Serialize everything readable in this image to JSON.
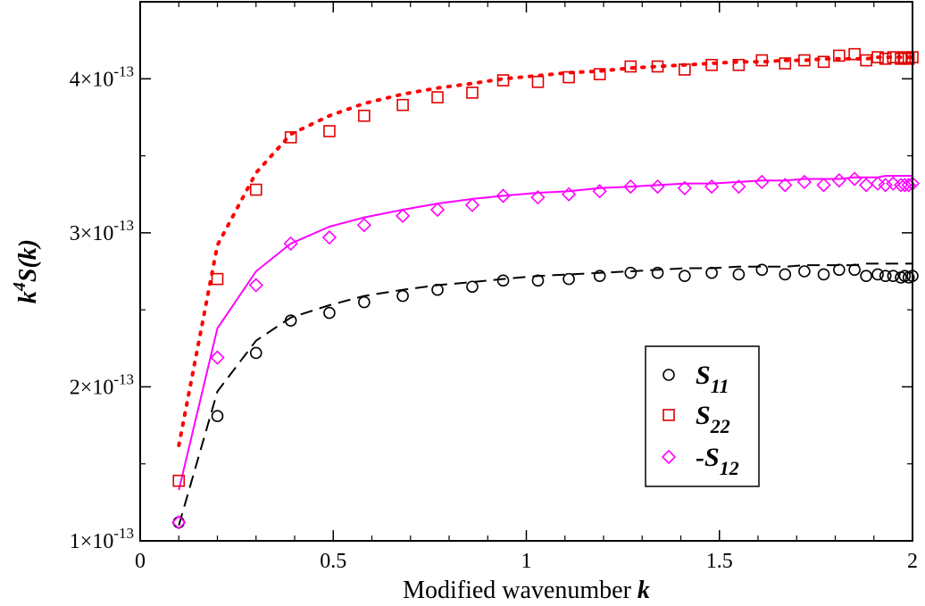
{
  "chart_data": {
    "type": "scatter",
    "title": "",
    "xlabel_text": "Modified wavenumber ",
    "xlabel_var": "k",
    "ylabel_base": "k",
    "ylabel_exp": "4",
    "ylabel_rest": "S(k)",
    "xlim": [
      0,
      2
    ],
    "ylim": [
      1e-13,
      4.5e-13
    ],
    "x_ticks": [
      {
        "value": 0,
        "label": "0"
      },
      {
        "value": 0.5,
        "label": "0.5"
      },
      {
        "value": 1,
        "label": "1"
      },
      {
        "value": 1.5,
        "label": "1.5"
      },
      {
        "value": 2,
        "label": "2"
      }
    ],
    "y_ticks": [
      {
        "value": 1e-13,
        "mant": "1×10",
        "exp": "-13"
      },
      {
        "value": 2e-13,
        "mant": "2×10",
        "exp": "-13"
      },
      {
        "value": 3e-13,
        "mant": "3×10",
        "exp": "-13"
      },
      {
        "value": 4e-13,
        "mant": "4×10",
        "exp": "-13"
      }
    ],
    "grid": false,
    "legend_position": "bottom-right",
    "series": [
      {
        "name": "S",
        "subscript": "11",
        "prefix": "",
        "marker": "circle",
        "color": "#000000",
        "x": [
          0.1,
          0.2,
          0.3,
          0.39,
          0.49,
          0.58,
          0.68,
          0.77,
          0.86,
          0.94,
          1.03,
          1.11,
          1.19,
          1.27,
          1.34,
          1.41,
          1.48,
          1.55,
          1.61,
          1.67,
          1.72,
          1.77,
          1.81,
          1.85,
          1.88,
          1.91,
          1.93,
          1.95,
          1.97,
          1.98,
          1.99,
          2.0
        ],
        "y": [
          1.12e-13,
          1.81e-13,
          2.22e-13,
          2.43e-13,
          2.48e-13,
          2.55e-13,
          2.59e-13,
          2.63e-13,
          2.65e-13,
          2.69e-13,
          2.69e-13,
          2.7e-13,
          2.72e-13,
          2.74e-13,
          2.74e-13,
          2.72e-13,
          2.74e-13,
          2.73e-13,
          2.76e-13,
          2.73e-13,
          2.75e-13,
          2.73e-13,
          2.76e-13,
          2.76e-13,
          2.72e-13,
          2.73e-13,
          2.72e-13,
          2.72e-13,
          2.71e-13,
          2.72e-13,
          2.71e-13,
          2.72e-13
        ]
      },
      {
        "name": "S",
        "subscript": "22",
        "prefix": "",
        "marker": "square",
        "color": "#e00000",
        "x": [
          0.1,
          0.2,
          0.3,
          0.39,
          0.49,
          0.58,
          0.68,
          0.77,
          0.86,
          0.94,
          1.03,
          1.11,
          1.19,
          1.27,
          1.34,
          1.41,
          1.48,
          1.55,
          1.61,
          1.67,
          1.72,
          1.77,
          1.81,
          1.85,
          1.88,
          1.91,
          1.93,
          1.95,
          1.97,
          1.98,
          1.99,
          2.0
        ],
        "y": [
          1.39e-13,
          2.7e-13,
          3.28e-13,
          3.62e-13,
          3.66e-13,
          3.76e-13,
          3.83e-13,
          3.88e-13,
          3.91e-13,
          3.99e-13,
          3.98e-13,
          4.01e-13,
          4.03e-13,
          4.08e-13,
          4.08e-13,
          4.06e-13,
          4.09e-13,
          4.09e-13,
          4.12e-13,
          4.1e-13,
          4.12e-13,
          4.11e-13,
          4.15e-13,
          4.16e-13,
          4.12e-13,
          4.14e-13,
          4.13e-13,
          4.14e-13,
          4.13e-13,
          4.14e-13,
          4.13e-13,
          4.14e-13
        ]
      },
      {
        "name": "S",
        "subscript": "12",
        "prefix": "-",
        "marker": "diamond",
        "color": "#ff00ff",
        "x": [
          0.1,
          0.2,
          0.3,
          0.39,
          0.49,
          0.58,
          0.68,
          0.77,
          0.86,
          0.94,
          1.03,
          1.11,
          1.19,
          1.27,
          1.34,
          1.41,
          1.48,
          1.55,
          1.61,
          1.67,
          1.72,
          1.77,
          1.81,
          1.85,
          1.88,
          1.91,
          1.93,
          1.95,
          1.97,
          1.98,
          1.99,
          2.0
        ],
        "y": [
          1.12e-13,
          2.19e-13,
          2.66e-13,
          2.93e-13,
          2.97e-13,
          3.05e-13,
          3.11e-13,
          3.15e-13,
          3.18e-13,
          3.24e-13,
          3.23e-13,
          3.25e-13,
          3.27e-13,
          3.3e-13,
          3.3e-13,
          3.29e-13,
          3.3e-13,
          3.3e-13,
          3.33e-13,
          3.31e-13,
          3.33e-13,
          3.31e-13,
          3.34e-13,
          3.35e-13,
          3.31e-13,
          3.32e-13,
          3.31e-13,
          3.32e-13,
          3.31e-13,
          3.31e-13,
          3.31e-13,
          3.32e-13
        ]
      }
    ],
    "curves": [
      {
        "style": "dashed",
        "color": "#000000",
        "x": [
          0.1,
          0.2,
          0.3,
          0.39,
          0.49,
          0.58,
          0.68,
          0.77,
          0.86,
          0.94,
          1.03,
          1.11,
          1.19,
          1.27,
          1.34,
          1.41,
          1.48,
          1.55,
          1.61,
          1.67,
          1.72,
          1.77,
          1.81,
          1.85,
          1.88,
          1.91,
          1.93,
          1.95,
          1.97,
          1.98,
          1.99,
          2.0
        ],
        "y": [
          1.1e-13,
          1.97e-13,
          2.3e-13,
          2.45e-13,
          2.53e-13,
          2.59e-13,
          2.63e-13,
          2.66e-13,
          2.68e-13,
          2.7e-13,
          2.72e-13,
          2.73e-13,
          2.74e-13,
          2.75e-13,
          2.76e-13,
          2.77e-13,
          2.77e-13,
          2.78e-13,
          2.78e-13,
          2.78e-13,
          2.79e-13,
          2.79e-13,
          2.79e-13,
          2.79e-13,
          2.8e-13,
          2.8e-13,
          2.8e-13,
          2.8e-13,
          2.8e-13,
          2.8e-13,
          2.8e-13,
          2.8e-13
        ]
      },
      {
        "style": "dotted",
        "color": "#ff0000",
        "x": [
          0.1,
          0.2,
          0.3,
          0.39,
          0.49,
          0.58,
          0.68,
          0.77,
          0.86,
          0.94,
          1.03,
          1.11,
          1.19,
          1.27,
          1.34,
          1.41,
          1.48,
          1.55,
          1.61,
          1.67,
          1.72,
          1.77,
          1.81,
          1.85,
          1.88,
          1.91,
          1.93,
          1.95,
          1.97,
          1.98,
          1.99,
          2.0
        ],
        "y": [
          1.62e-13,
          2.92e-13,
          3.39e-13,
          3.64e-13,
          3.76e-13,
          3.84e-13,
          3.9e-13,
          3.94e-13,
          3.97e-13,
          4e-13,
          4.02e-13,
          4.04e-13,
          4.05e-13,
          4.07e-13,
          4.08e-13,
          4.09e-13,
          4.1e-13,
          4.11e-13,
          4.11e-13,
          4.12e-13,
          4.12e-13,
          4.13e-13,
          4.13e-13,
          4.13e-13,
          4.13e-13,
          4.14e-13,
          4.14e-13,
          4.14e-13,
          4.14e-13,
          4.14e-13,
          4.14e-13,
          4.14e-13
        ]
      },
      {
        "style": "solid",
        "color": "#ff00ff",
        "x": [
          0.1,
          0.2,
          0.3,
          0.39,
          0.49,
          0.58,
          0.68,
          0.77,
          0.86,
          0.94,
          1.03,
          1.11,
          1.19,
          1.27,
          1.34,
          1.41,
          1.48,
          1.55,
          1.61,
          1.67,
          1.72,
          1.77,
          1.81,
          1.85,
          1.88,
          1.91,
          1.93,
          1.95,
          1.97,
          1.98,
          1.99,
          2.0
        ],
        "y": [
          1.33e-13,
          2.38e-13,
          2.75e-13,
          2.93e-13,
          3.04e-13,
          3.1e-13,
          3.15e-13,
          3.19e-13,
          3.22e-13,
          3.24e-13,
          3.26e-13,
          3.27e-13,
          3.29e-13,
          3.3e-13,
          3.31e-13,
          3.32e-13,
          3.32e-13,
          3.33e-13,
          3.34e-13,
          3.34e-13,
          3.35e-13,
          3.35e-13,
          3.35e-13,
          3.36e-13,
          3.36e-13,
          3.36e-13,
          3.37e-13,
          3.37e-13,
          3.37e-13,
          3.37e-13,
          3.37e-13,
          3.37e-13
        ]
      }
    ]
  }
}
